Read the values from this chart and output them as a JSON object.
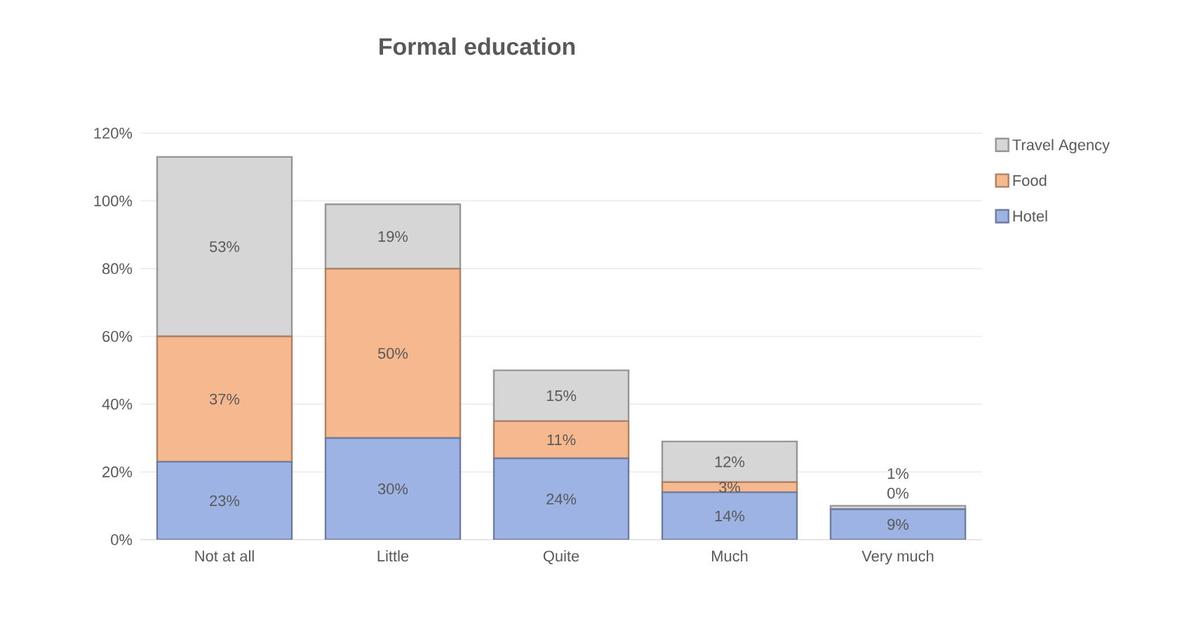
{
  "chart_data": {
    "type": "bar",
    "title": "Formal education",
    "stacked": true,
    "categories": [
      "Not at all",
      "Little",
      "Quite",
      "Much",
      "Very much"
    ],
    "series": [
      {
        "name": "Hotel",
        "color": "#9db3e3",
        "values": [
          23,
          30,
          24,
          14,
          9
        ],
        "value_labels": [
          "23%",
          "30%",
          "24%",
          "14%",
          "9%"
        ]
      },
      {
        "name": "Food",
        "color": "#f6b98f",
        "values": [
          37,
          50,
          11,
          3,
          0
        ],
        "value_labels": [
          "37%",
          "50%",
          "11%",
          "3%",
          "0%"
        ]
      },
      {
        "name": "Travel Agency",
        "color": "#d6d6d6",
        "values": [
          53,
          19,
          15,
          12,
          1
        ],
        "value_labels": [
          "53%",
          "19%",
          "15%",
          "12%",
          "1%"
        ]
      }
    ],
    "ylim": [
      0,
      120
    ],
    "yticks": [
      {
        "value": 0,
        "label": "0%"
      },
      {
        "value": 20,
        "label": "20%"
      },
      {
        "value": 40,
        "label": "40%"
      },
      {
        "value": 60,
        "label": "60%"
      },
      {
        "value": 80,
        "label": "80%"
      },
      {
        "value": 100,
        "label": "100%"
      },
      {
        "value": 120,
        "label": "120%"
      }
    ],
    "grid": "y",
    "legend": "right"
  }
}
